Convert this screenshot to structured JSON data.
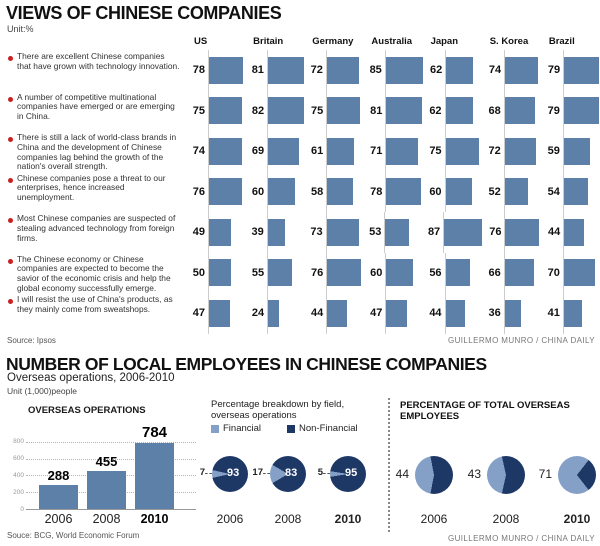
{
  "colors": {
    "bar_blue": "#5d80a8",
    "navy": "#1e3866",
    "light_blue": "#84a0c6",
    "bullet_red": "#c92121"
  },
  "section1": {
    "title": "VIEWS OF CHINESE COMPANIES",
    "unit": "Unit:%",
    "countries": [
      "US",
      "Britain",
      "Germany",
      "Australia",
      "Japan",
      "S. Korea",
      "Brazil"
    ],
    "rows": [
      {
        "statement": "There are excellent Chinese companies that have grown with technology innovation.",
        "values": [
          78,
          81,
          72,
          85,
          62,
          74,
          79
        ]
      },
      {
        "statement": "A number of competitive multinational companies have emerged or are emerging in China.",
        "values": [
          75,
          82,
          75,
          81,
          62,
          68,
          79
        ]
      },
      {
        "statement": "There is still a lack of world-class brands in China and the development of Chinese companies lag behind the growth of the nation's overall strength.",
        "values": [
          74,
          69,
          61,
          71,
          75,
          72,
          59
        ]
      },
      {
        "statement": "Chinese companies pose a threat to our enterprises, hence increased unemployment.",
        "values": [
          76,
          60,
          58,
          78,
          60,
          52,
          54
        ]
      },
      {
        "statement": "Most Chinese companies are suspected of stealing advanced technology from foreign firms.",
        "values": [
          49,
          39,
          73,
          53,
          87,
          76,
          44
        ]
      },
      {
        "statement": "The Chinese economy or Chinese companies are expected to become the savior of the economic crisis and help the global economy successfully emerge.",
        "values": [
          50,
          55,
          76,
          60,
          56,
          66,
          70
        ]
      },
      {
        "statement": "I will resist the use of China's products, as they mainly come from sweatshops.",
        "values": [
          47,
          24,
          44,
          47,
          44,
          36,
          41
        ]
      }
    ],
    "source": "Source: Ipsos",
    "credit": "GUILLERMO MUNRO / CHINA DAILY"
  },
  "section2": {
    "title": "NUMBER OF LOCAL EMPLOYEES IN CHINESE COMPANIES",
    "subtitle": "Overseas operations, 2006-2010",
    "unit": "Unit (1,000)people",
    "bar_chart": {
      "title": "OVERSEAS OPERATIONS",
      "years": [
        "2006",
        "2008",
        "2010"
      ],
      "values": [
        288,
        455,
        784
      ],
      "y_ticks": [
        800,
        600,
        400,
        200,
        0
      ],
      "source": "Souce: BCG, World Economic Forum"
    },
    "pie_breakdown": {
      "title": "Percentage breakdown by field, overseas operations",
      "legend": [
        "Financial",
        "Non-Financial"
      ],
      "years": [
        "2006",
        "2008",
        "2010"
      ],
      "financial": [
        7,
        17,
        5
      ],
      "non_financial": [
        93,
        83,
        95
      ]
    },
    "pie_total": {
      "title": "PERCENTAGE OF TOTAL OVERSEAS EMPLOYEES",
      "years": [
        "2006",
        "2008",
        "2010"
      ],
      "values": [
        44,
        43,
        71
      ]
    },
    "credit": "GUILLERMO MUNRO / CHINA DAILY"
  },
  "chart_data": [
    {
      "type": "bar",
      "title": "VIEWS OF CHINESE COMPANIES",
      "unit": "%",
      "categories": [
        "There are excellent Chinese companies that have grown with technology innovation.",
        "A number of competitive multinational companies have emerged or are emerging in China.",
        "There is still a lack of world-class brands in China and the development of Chinese companies lag behind the growth of the nation's overall strength.",
        "Chinese companies pose a threat to our enterprises, hence increased unemployment.",
        "Most Chinese companies are suspected of stealing advanced technology from foreign firms.",
        "The Chinese economy or Chinese companies are expected to become the savior of the economic crisis and help the global economy successfully emerge.",
        "I will resist the use of China's products, as they mainly come from sweatshops."
      ],
      "series": [
        {
          "name": "US",
          "values": [
            78,
            75,
            74,
            76,
            49,
            50,
            47
          ]
        },
        {
          "name": "Britain",
          "values": [
            81,
            82,
            69,
            60,
            39,
            55,
            24
          ]
        },
        {
          "name": "Germany",
          "values": [
            72,
            75,
            61,
            58,
            73,
            76,
            44
          ]
        },
        {
          "name": "Australia",
          "values": [
            85,
            81,
            71,
            78,
            53,
            60,
            47
          ]
        },
        {
          "name": "Japan",
          "values": [
            62,
            62,
            75,
            60,
            87,
            56,
            44
          ]
        },
        {
          "name": "S. Korea",
          "values": [
            74,
            68,
            72,
            52,
            76,
            66,
            36
          ]
        },
        {
          "name": "Brazil",
          "values": [
            79,
            79,
            59,
            54,
            44,
            70,
            41
          ]
        }
      ],
      "xlim": [
        0,
        100
      ],
      "source": "Ipsos"
    },
    {
      "type": "bar",
      "title": "OVERSEAS OPERATIONS",
      "categories": [
        "2006",
        "2008",
        "2010"
      ],
      "values": [
        288,
        455,
        784
      ],
      "ylabel": "Unit (1,000) people",
      "ylim": [
        0,
        800
      ],
      "yticks": [
        0,
        200,
        400,
        600,
        800
      ],
      "grid": "dotted horizontal",
      "source": "BCG, World Economic Forum"
    },
    {
      "type": "pie",
      "title": "Percentage breakdown by field, overseas operations",
      "legend": [
        "Financial",
        "Non-Financial"
      ],
      "pies": [
        {
          "year": "2006",
          "Financial": 7,
          "Non-Financial": 93
        },
        {
          "year": "2008",
          "Financial": 17,
          "Non-Financial": 83
        },
        {
          "year": "2010",
          "Financial": 5,
          "Non-Financial": 95
        }
      ]
    },
    {
      "type": "pie",
      "title": "PERCENTAGE OF TOTAL OVERSEAS EMPLOYEES",
      "pies": [
        {
          "year": "2006",
          "value": 44
        },
        {
          "year": "2008",
          "value": 43
        },
        {
          "year": "2010",
          "value": 71
        }
      ]
    }
  ]
}
